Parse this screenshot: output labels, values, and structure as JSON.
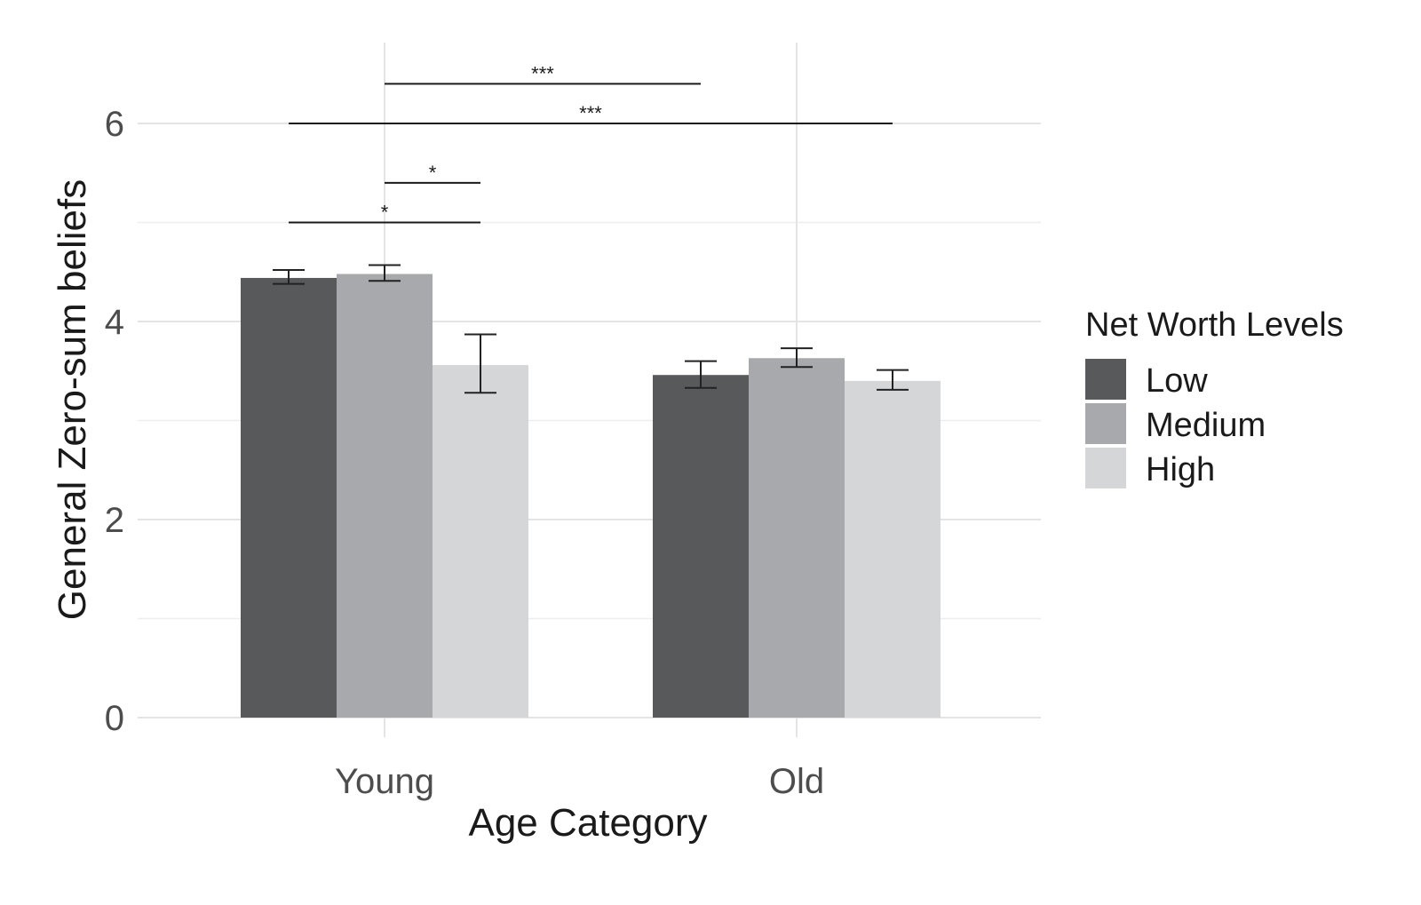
{
  "chart_data": {
    "type": "bar",
    "xlabel": "Age Category",
    "ylabel": "General Zero-sum beliefs",
    "ylim": [
      0,
      6.8
    ],
    "y_ticks": [
      0,
      2,
      4,
      6
    ],
    "grid": true,
    "categories": [
      "Young",
      "Old"
    ],
    "legend": {
      "title": "Net Worth Levels",
      "placement": "right"
    },
    "series": [
      {
        "name": "Low",
        "color": "#58595b",
        "values": [
          4.44,
          3.46
        ],
        "error_low": [
          4.38,
          3.33
        ],
        "error_high": [
          4.52,
          3.6
        ]
      },
      {
        "name": "Medium",
        "color": "#a7a9ac",
        "values": [
          4.48,
          3.63
        ],
        "error_low": [
          4.41,
          3.54
        ],
        "error_high": [
          4.57,
          3.73
        ]
      },
      {
        "name": "High",
        "color": "#d5d6d8",
        "values": [
          3.56,
          3.4
        ],
        "error_low": [
          3.28,
          3.31
        ],
        "error_high": [
          3.87,
          3.51
        ]
      }
    ],
    "annotations": [
      {
        "label": "***",
        "from": {
          "category": 0,
          "series": 1
        },
        "to": {
          "category": 1,
          "series": 0
        },
        "y": 6.4
      },
      {
        "label": "***",
        "from": {
          "category": 0,
          "series": 0
        },
        "to": {
          "category": 1,
          "series": 2
        },
        "y": 6.0
      },
      {
        "label": "*",
        "from": {
          "category": 0,
          "series": 1
        },
        "to": {
          "category": 0,
          "series": 2
        },
        "y": 5.4
      },
      {
        "label": "*",
        "from": {
          "category": 0,
          "series": 0
        },
        "to": {
          "category": 0,
          "series": 2
        },
        "y": 5.0
      }
    ]
  }
}
